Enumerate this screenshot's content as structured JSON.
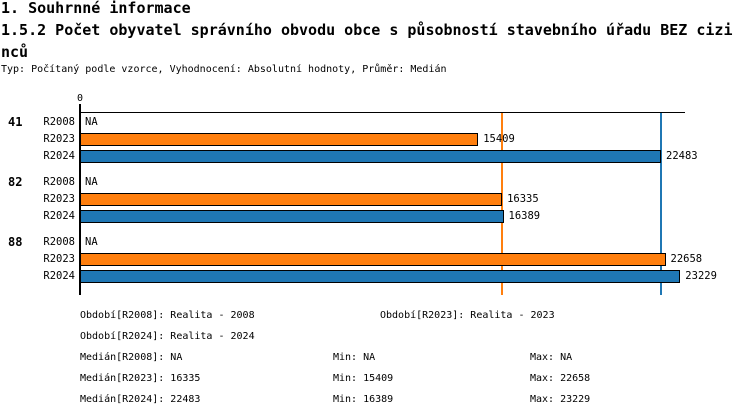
{
  "header": {
    "title": "1. Souhrnné informace",
    "subtitle_line1": "1.5.2 Počet obyvatel správního obvodu obce s působností stavebního úřadu BEZ cizi",
    "subtitle_line2": "nců",
    "meta": "Typ: Počítaný podle vzorce, Vyhodnocení: Absolutní hodnoty, Průměr: Medián"
  },
  "chart_data": {
    "type": "bar",
    "orientation": "horizontal",
    "title": "1.5.2 Počet obyvatel správního obvodu obce s působností stavebního úřadu BEZ cizinců",
    "axis": {
      "zero_tick_label": "0",
      "x_min": 0,
      "x_max": 23400,
      "grid": false
    },
    "series_colors": {
      "R2008": "#ffffff",
      "R2023": "#ff7f0e",
      "R2024": "#1f77b4"
    },
    "reference_lines": [
      {
        "name": "median-R2023",
        "value": 16335,
        "color": "#ff7f0e"
      },
      {
        "name": "median-R2024",
        "value": 22483,
        "color": "#1f77b4"
      }
    ],
    "groups": [
      {
        "label": "41",
        "rows": [
          {
            "series": "R2008",
            "value": null,
            "value_label": "NA"
          },
          {
            "series": "R2023",
            "value": 15409,
            "value_label": "15409"
          },
          {
            "series": "R2024",
            "value": 22483,
            "value_label": "22483"
          }
        ]
      },
      {
        "label": "82",
        "rows": [
          {
            "series": "R2008",
            "value": null,
            "value_label": "NA"
          },
          {
            "series": "R2023",
            "value": 16335,
            "value_label": "16335"
          },
          {
            "series": "R2024",
            "value": 16389,
            "value_label": "16389"
          }
        ]
      },
      {
        "label": "88",
        "rows": [
          {
            "series": "R2008",
            "value": null,
            "value_label": "NA"
          },
          {
            "series": "R2023",
            "value": 22658,
            "value_label": "22658"
          },
          {
            "series": "R2024",
            "value": 23229,
            "value_label": "23229"
          }
        ]
      }
    ]
  },
  "footer": {
    "period_row1_col1": "Období[R2008]: Realita - 2008",
    "period_row1_col2": "Období[R2023]: Realita - 2023",
    "period_row2_col1": "Období[R2024]: Realita - 2024",
    "stats_rows": [
      {
        "median": "Medián[R2008]: NA",
        "min": "Min: NA",
        "max": "Max: NA"
      },
      {
        "median": "Medián[R2023]: 16335",
        "min": "Min: 15409",
        "max": "Max: 22658"
      },
      {
        "median": "Medián[R2024]: 22483",
        "min": "Min: 16389",
        "max": "Max: 23229"
      }
    ]
  }
}
